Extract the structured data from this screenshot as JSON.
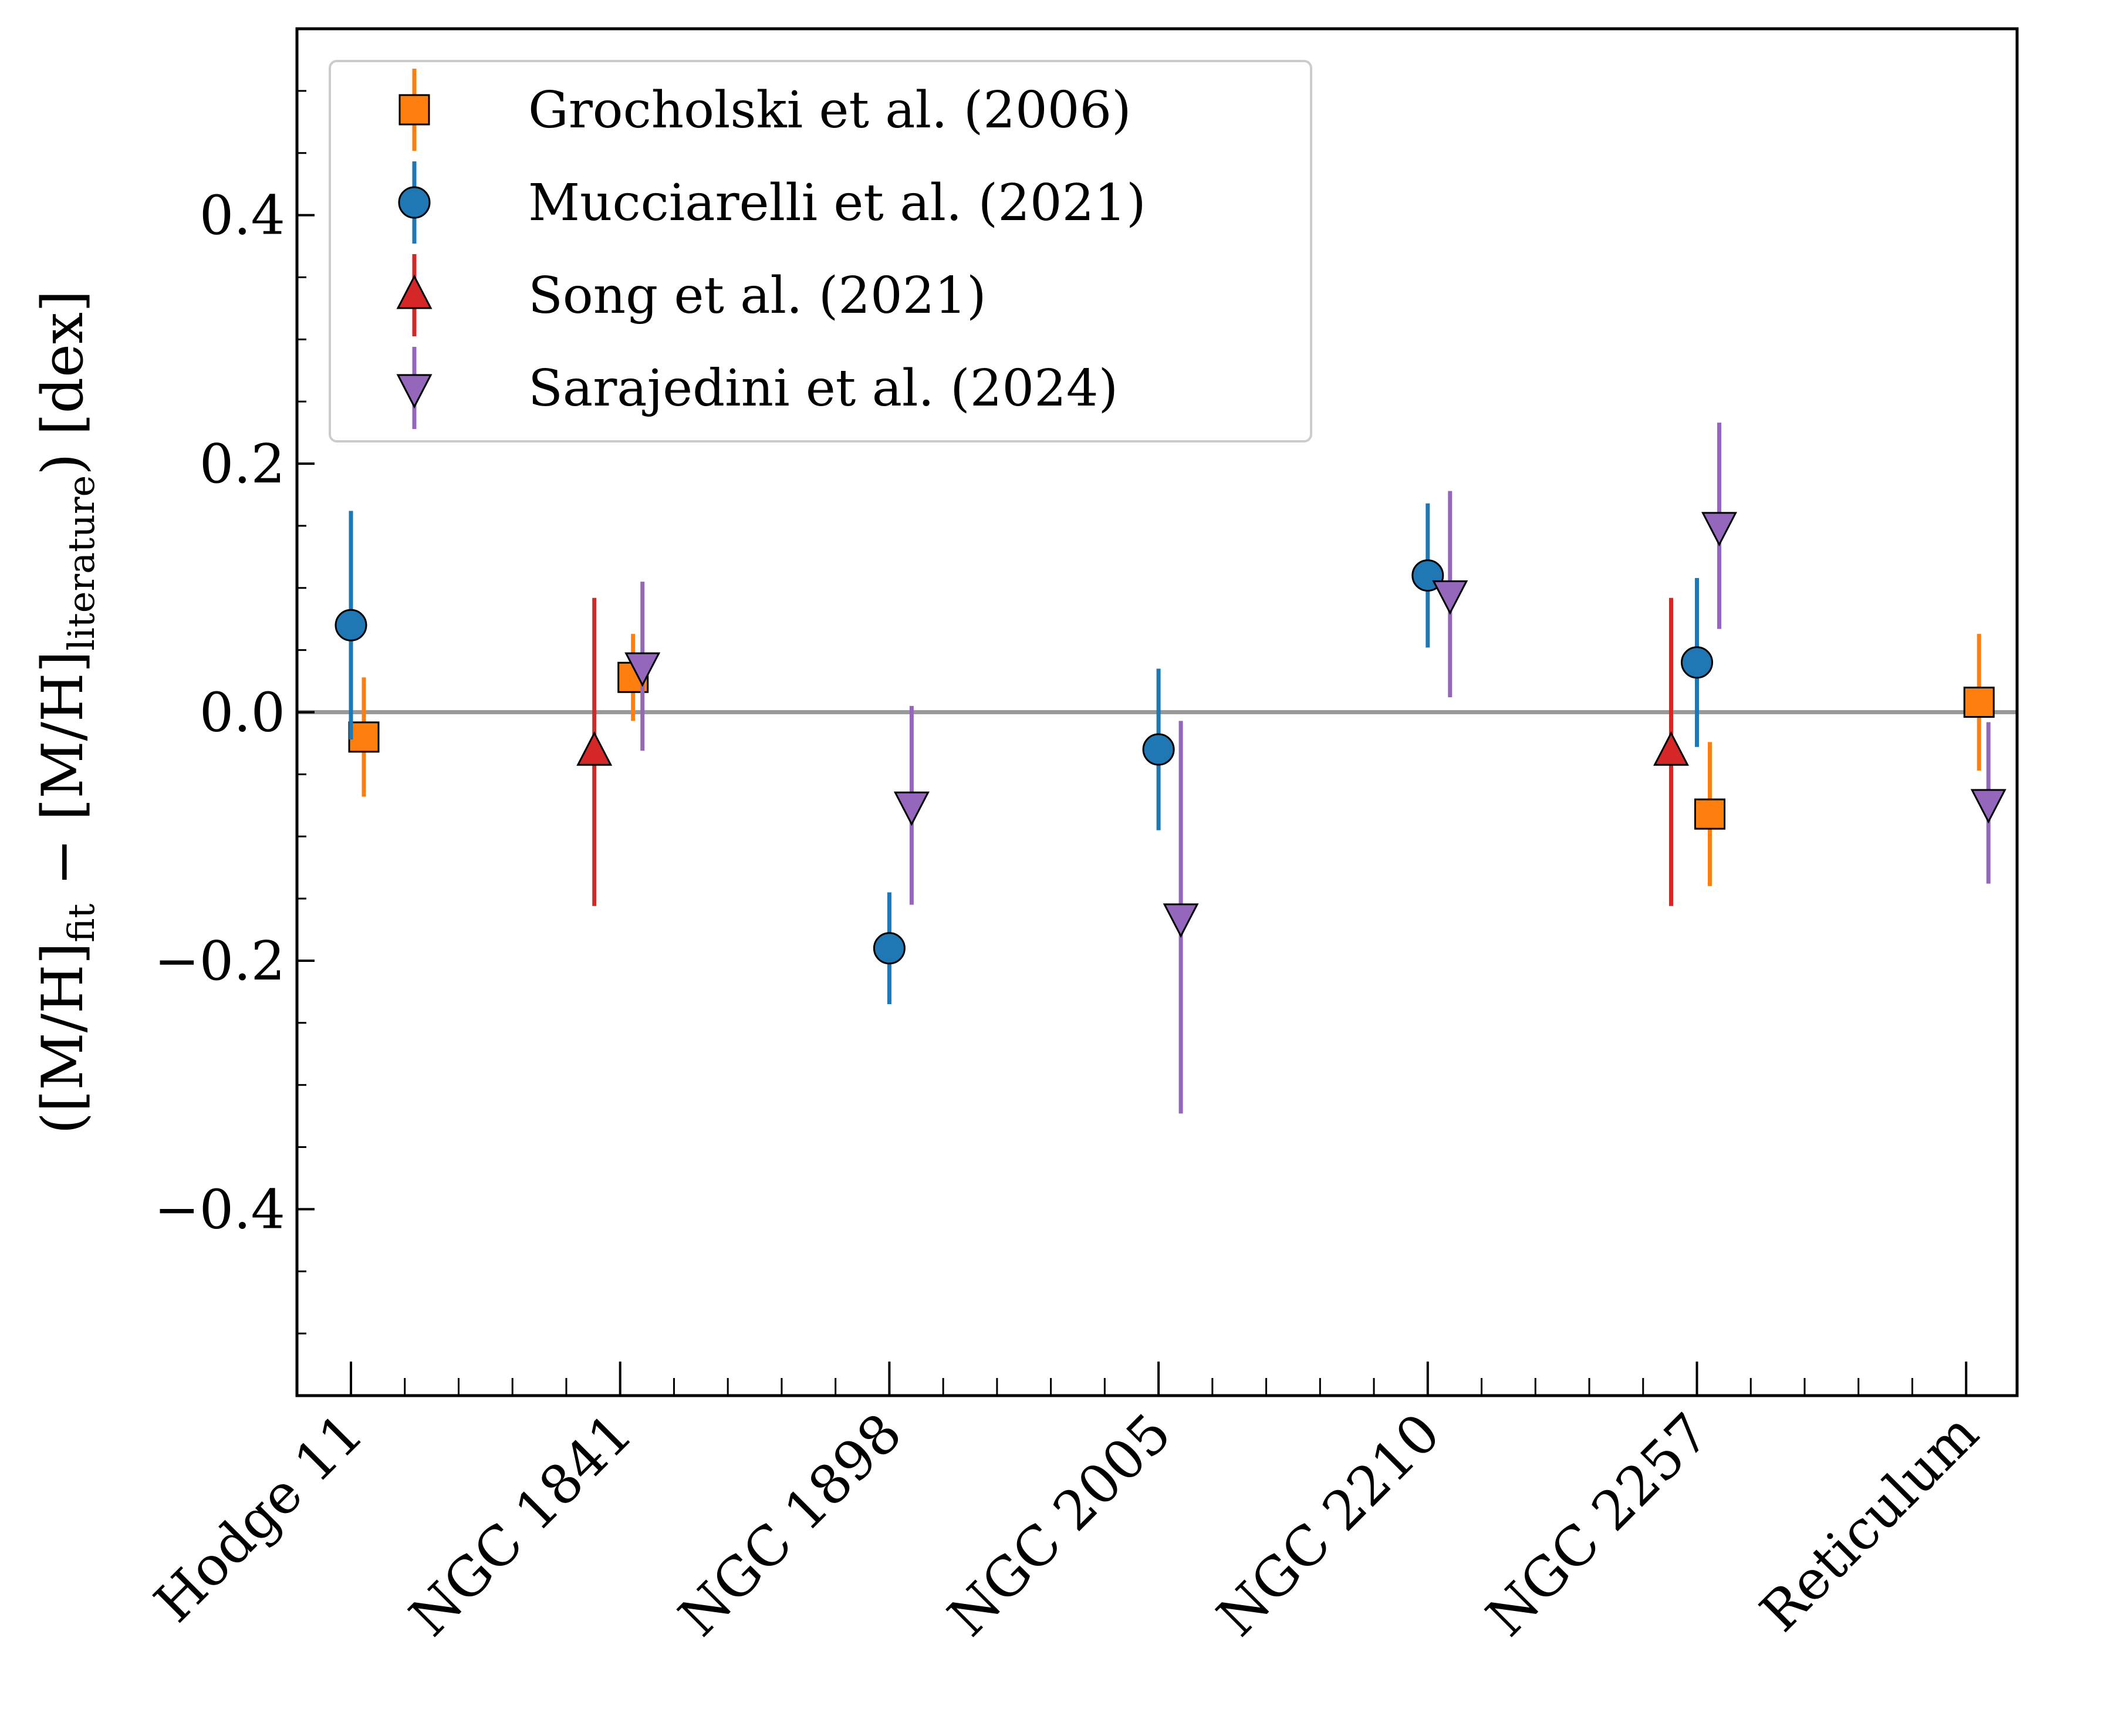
{
  "chart_data": {
    "type": "scatter",
    "title": "",
    "xlabel": "",
    "ylabel": {
      "open": "([M/H]",
      "sub1": "fit",
      "mid": " − [M/H]",
      "sub2": "literature",
      "close": ") [dex]"
    },
    "categories": [
      "Hodge 11",
      "NGC 1841",
      "NGC 1898",
      "NGC 2005",
      "NGC 2210",
      "NGC 2257",
      "Reticulum"
    ],
    "ylim": [
      -0.55,
      0.55
    ],
    "yticks": [
      -0.4,
      -0.2,
      0.0,
      0.2,
      0.4
    ],
    "ytick_labels": [
      "−0.4",
      "−0.2",
      "0.0",
      "0.2",
      "0.4"
    ],
    "reference_line": 0.0,
    "legend_position": "upper-left",
    "series": [
      {
        "name": "Grocholski et al. (2006)",
        "marker": "square",
        "color": "#ff7f0e",
        "points": [
          {
            "category": "Hodge 11",
            "y": -0.02,
            "err": 0.048
          },
          {
            "category": "NGC 1841",
            "y": 0.028,
            "err": 0.035
          },
          {
            "category": "NGC 2257",
            "y": -0.082,
            "err": 0.058
          },
          {
            "category": "Reticulum",
            "y": 0.008,
            "err": 0.055
          }
        ]
      },
      {
        "name": "Mucciarelli et al. (2021)",
        "marker": "circle",
        "color": "#1f77b4",
        "points": [
          {
            "category": "Hodge 11",
            "y": 0.07,
            "err": 0.092
          },
          {
            "category": "NGC 1898",
            "y": -0.19,
            "err": 0.045
          },
          {
            "category": "NGC 2005",
            "y": -0.03,
            "err": 0.065
          },
          {
            "category": "NGC 2210",
            "y": 0.11,
            "err": 0.058
          },
          {
            "category": "NGC 2257",
            "y": 0.04,
            "err": 0.068
          }
        ]
      },
      {
        "name": "Song et al. (2021)",
        "marker": "triangle-up",
        "color": "#d62728",
        "points": [
          {
            "category": "NGC 1841",
            "y": -0.032,
            "err": 0.124
          },
          {
            "category": "NGC 2257",
            "y": -0.032,
            "err": 0.124
          }
        ]
      },
      {
        "name": "Sarajedini et al. (2024)",
        "marker": "triangle-down",
        "color": "#9467bd",
        "points": [
          {
            "category": "NGC 1841",
            "y": 0.037,
            "err": 0.068
          },
          {
            "category": "NGC 1898",
            "y": -0.075,
            "err": 0.08
          },
          {
            "category": "NGC 2005",
            "y": -0.165,
            "err": 0.158
          },
          {
            "category": "NGC 2210",
            "y": 0.095,
            "err": 0.083
          },
          {
            "category": "NGC 2257",
            "y": 0.15,
            "err": 0.083
          },
          {
            "category": "Reticulum",
            "y": -0.073,
            "err": 0.065
          }
        ]
      }
    ]
  }
}
